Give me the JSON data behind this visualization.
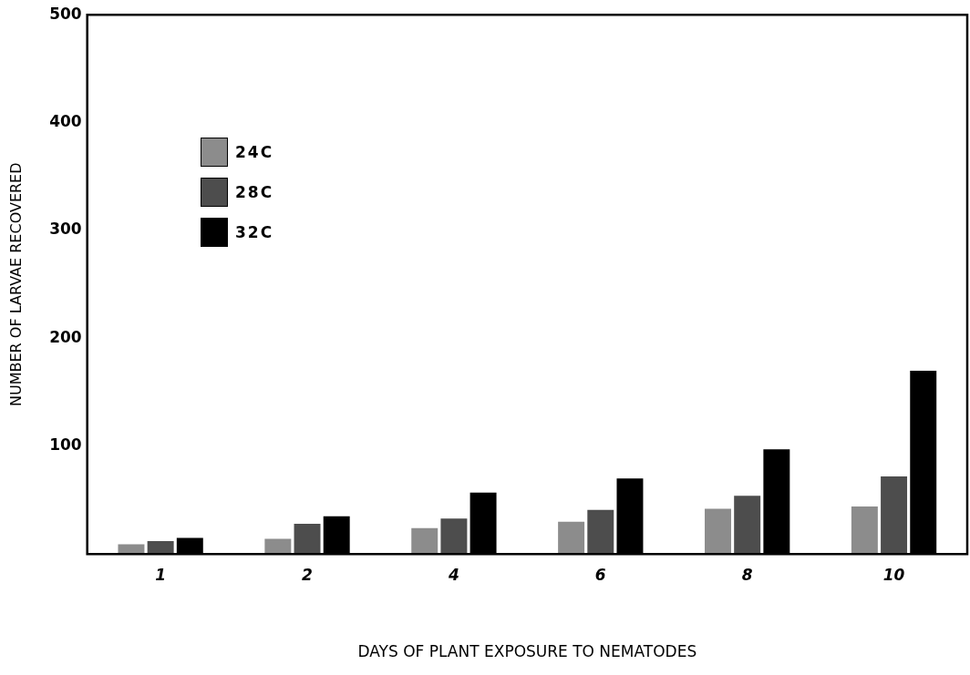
{
  "chart_data": {
    "type": "bar",
    "xlabel": "DAYS OF PLANT EXPOSURE TO NEMATODES",
    "ylabel": "NUMBER OF LARVAE RECOVERED",
    "categories": [
      "1",
      "2",
      "4",
      "6",
      "8",
      "10"
    ],
    "series": [
      {
        "name": "24C",
        "color": "#8c8c8c",
        "values": [
          9,
          14,
          24,
          30,
          42,
          44
        ]
      },
      {
        "name": "28C",
        "color": "#4d4d4d",
        "values": [
          12,
          28,
          33,
          41,
          54,
          72
        ]
      },
      {
        "name": "32C",
        "color": "#000000",
        "values": [
          15,
          35,
          57,
          70,
          97,
          170
        ]
      }
    ],
    "ylim": [
      0,
      500
    ],
    "yticks": [
      100,
      200,
      300,
      400,
      500
    ],
    "grid": false,
    "legend": "top left"
  }
}
